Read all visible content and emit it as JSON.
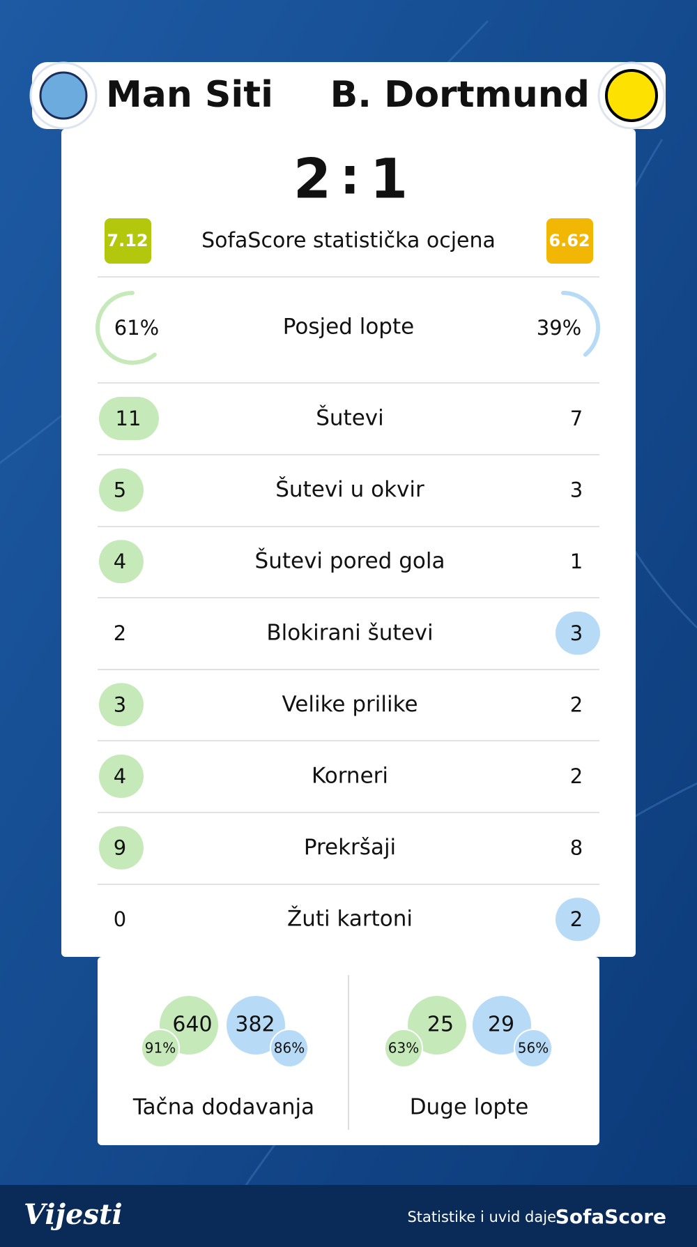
{
  "header": {
    "home_team": "Man Siti",
    "away_team": "B. Dortmund"
  },
  "score": {
    "home": 2,
    "separator": ":",
    "away": 1
  },
  "rating": {
    "label": "SofaScore statistička ocjena",
    "home": "7.12",
    "away": "6.62"
  },
  "possession": {
    "label": "Posjed lopte",
    "home": "61%",
    "away": "39%"
  },
  "stats": [
    {
      "label": "Šutevi",
      "home": "11",
      "away": "7",
      "highlight": "home"
    },
    {
      "label": "Šutevi u okvir",
      "home": "5",
      "away": "3",
      "highlight": "home"
    },
    {
      "label": "Šutevi pored gola",
      "home": "4",
      "away": "1",
      "highlight": "home"
    },
    {
      "label": "Blokirani šutevi",
      "home": "2",
      "away": "3",
      "highlight": "away"
    },
    {
      "label": "Velike prilike",
      "home": "3",
      "away": "2",
      "highlight": "home"
    },
    {
      "label": "Korneri",
      "home": "4",
      "away": "2",
      "highlight": "home"
    },
    {
      "label": "Prekršaji",
      "home": "9",
      "away": "8",
      "highlight": "home"
    },
    {
      "label": "Žuti kartoni",
      "home": "0",
      "away": "2",
      "highlight": "away"
    }
  ],
  "passes": [
    {
      "label": "Tačna dodavanja",
      "home": "640",
      "home_pct": "91%",
      "away": "382",
      "away_pct": "86%"
    },
    {
      "label": "Duge lopte",
      "home": "25",
      "home_pct": "63%",
      "away": "29",
      "away_pct": "56%"
    }
  ],
  "footer": {
    "brand": "Vijesti",
    "credit": "Statistike i uvid daje",
    "provider": "SofaScore"
  }
}
